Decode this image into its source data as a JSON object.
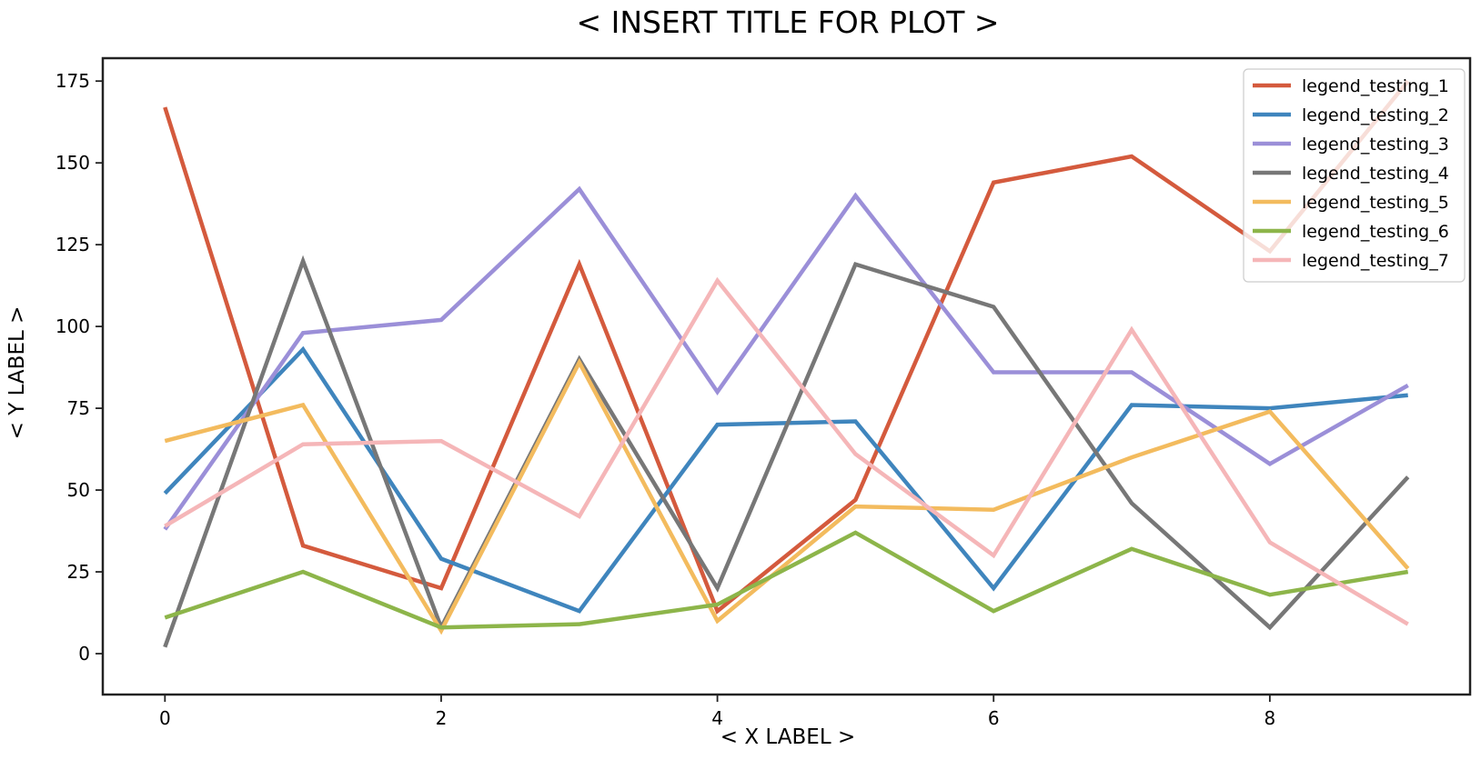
{
  "chart_data": {
    "type": "line",
    "title": "< INSERT TITLE FOR PLOT >",
    "xlabel": "< X LABEL >",
    "ylabel": "< Y LABEL >",
    "x": [
      0,
      1,
      2,
      3,
      4,
      5,
      6,
      7,
      8,
      9
    ],
    "xlim": [
      -0.45,
      9.45
    ],
    "ylim": [
      -12.5,
      182
    ],
    "xticks": [
      0,
      2,
      4,
      6,
      8
    ],
    "yticks": [
      0,
      25,
      50,
      75,
      100,
      125,
      150,
      175
    ],
    "grid": false,
    "legend_position": "top-right",
    "series": [
      {
        "name": "legend_testing_1",
        "color": "#d45a3d",
        "values": [
          167,
          33,
          20,
          119,
          13,
          47,
          144,
          152,
          123,
          175
        ]
      },
      {
        "name": "legend_testing_2",
        "color": "#3f85bd",
        "values": [
          49,
          93,
          29,
          13,
          70,
          71,
          20,
          76,
          75,
          79
        ]
      },
      {
        "name": "legend_testing_3",
        "color": "#9b8fd8",
        "values": [
          38,
          98,
          102,
          142,
          80,
          140,
          86,
          86,
          58,
          82
        ]
      },
      {
        "name": "legend_testing_4",
        "color": "#777777",
        "values": [
          2,
          120,
          8,
          90,
          20,
          119,
          106,
          46,
          8,
          54
        ]
      },
      {
        "name": "legend_testing_5",
        "color": "#f3bb5e",
        "values": [
          65,
          76,
          7,
          89,
          10,
          45,
          44,
          60,
          74,
          26
        ]
      },
      {
        "name": "legend_testing_6",
        "color": "#8db54a",
        "values": [
          11,
          25,
          8,
          9,
          15,
          37,
          13,
          32,
          18,
          25
        ]
      },
      {
        "name": "legend_testing_7",
        "color": "#f5b6b8",
        "values": [
          39,
          64,
          65,
          42,
          114,
          61,
          30,
          99,
          34,
          9
        ]
      }
    ]
  }
}
